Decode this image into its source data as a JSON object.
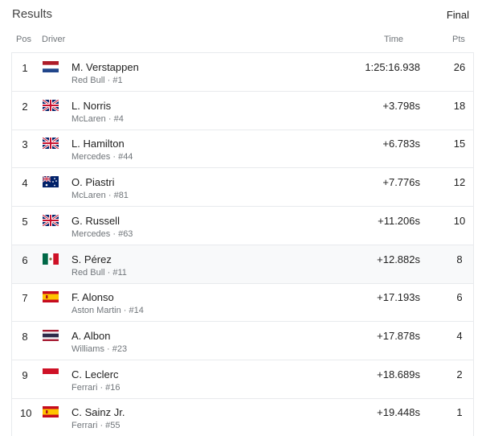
{
  "header": {
    "title": "Results",
    "status": "Final"
  },
  "table": {
    "columns": [
      "Pos",
      "Driver",
      "Time",
      "Pts"
    ],
    "rows": [
      {
        "pos": 1,
        "driver": "M. Verstappen",
        "team": "Red Bull · #1",
        "time": "1:25:16.938",
        "pts": 26
      },
      {
        "pos": 2,
        "driver": "L. Norris",
        "team": "McLaren · #4",
        "time": "+3.798s",
        "pts": 18
      },
      {
        "pos": 3,
        "driver": "L. Hamilton",
        "team": "Mercedes · #44",
        "time": "+6.783s",
        "pts": 15
      },
      {
        "pos": 4,
        "driver": "O. Piastri",
        "team": "McLaren · #81",
        "time": "+7.776s",
        "pts": 12
      },
      {
        "pos": 5,
        "driver": "G. Russell",
        "team": "Mercedes · #63",
        "time": "+11.206s",
        "pts": 10
      },
      {
        "pos": 6,
        "driver": "S. Pérez",
        "team": "Red Bull · #11",
        "time": "+12.882s",
        "pts": 8
      },
      {
        "pos": 7,
        "driver": "F. Alonso",
        "team": "Aston Martin · #14",
        "time": "+17.193s",
        "pts": 6
      },
      {
        "pos": 8,
        "driver": "A. Albon",
        "team": "Williams · #23",
        "time": "+17.878s",
        "pts": 4
      },
      {
        "pos": 9,
        "driver": "C. Leclerc",
        "team": "Ferrari · #16",
        "time": "+18.689s",
        "pts": 2
      },
      {
        "pos": 10,
        "driver": "C. Sainz Jr.",
        "team": "Ferrari · #55",
        "time": "+19.448s",
        "pts": 1
      }
    ]
  }
}
